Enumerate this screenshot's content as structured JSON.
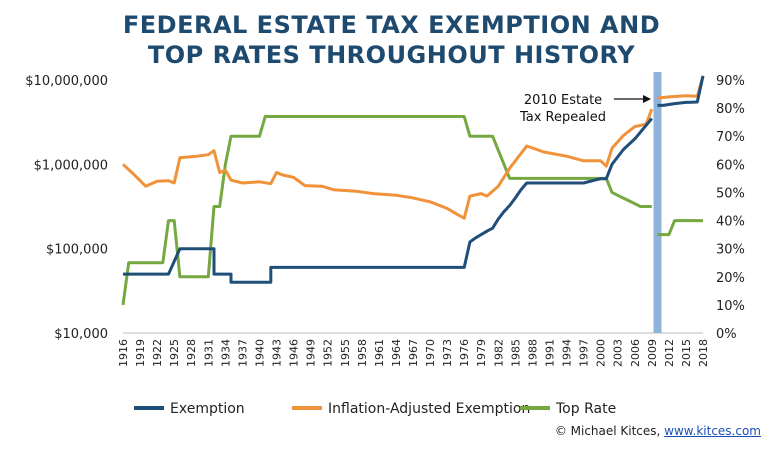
{
  "chart_data": {
    "type": "line",
    "title_line1": "FEDERAL ESTATE TAX EXEMPTION AND",
    "title_line2": "TOP RATES THROUGHOUT HISTORY",
    "y_left_scale": "log",
    "y_left_range": [
      10000,
      10000000
    ],
    "y_left_ticks": [
      "$10,000",
      "$100,000",
      "$1,000,000",
      "$10,000,000"
    ],
    "y_right_range": [
      0,
      90
    ],
    "y_right_ticks": [
      "0%",
      "10%",
      "20%",
      "30%",
      "40%",
      "50%",
      "60%",
      "70%",
      "80%",
      "90%"
    ],
    "x_range": [
      1916,
      2018
    ],
    "x_ticks": [
      "1916",
      "1919",
      "1922",
      "1925",
      "1928",
      "1931",
      "1934",
      "1937",
      "1940",
      "1943",
      "1946",
      "1949",
      "1952",
      "1955",
      "1958",
      "1961",
      "1964",
      "1967",
      "1970",
      "1973",
      "1976",
      "1979",
      "1982",
      "1985",
      "1988",
      "1991",
      "1994",
      "1997",
      "2000",
      "2003",
      "2006",
      "2009",
      "2012",
      "2015",
      "2018"
    ],
    "highlight": {
      "year": 2010,
      "color": "#8fb4d9"
    },
    "annotation": {
      "line1": "2010 Estate",
      "line2": "Tax Repealed"
    },
    "series": [
      {
        "name": "Exemption",
        "axis": "left",
        "color": "#1f4e79",
        "points": [
          [
            1916,
            50000
          ],
          [
            1924,
            50000
          ],
          [
            1926,
            100000
          ],
          [
            1932,
            100000
          ],
          [
            1932,
            50000
          ],
          [
            1935,
            50000
          ],
          [
            1935,
            40000
          ],
          [
            1942,
            40000
          ],
          [
            1942,
            60000
          ],
          [
            1976,
            60000
          ],
          [
            1977,
            120000
          ],
          [
            1978,
            134000
          ],
          [
            1979,
            147000
          ],
          [
            1980,
            161000
          ],
          [
            1981,
            175000
          ],
          [
            1982,
            225000
          ],
          [
            1983,
            275000
          ],
          [
            1984,
            325000
          ],
          [
            1985,
            400000
          ],
          [
            1986,
            500000
          ],
          [
            1987,
            600000
          ],
          [
            1997,
            600000
          ],
          [
            1998,
            625000
          ],
          [
            1999,
            650000
          ],
          [
            2000,
            675000
          ],
          [
            2001,
            675000
          ],
          [
            2002,
            1000000
          ],
          [
            2004,
            1500000
          ],
          [
            2006,
            2000000
          ],
          [
            2009,
            3500000
          ]
        ],
        "points_after_gap": [
          [
            2010,
            5000000
          ],
          [
            2011,
            5000000
          ],
          [
            2012,
            5120000
          ],
          [
            2013,
            5250000
          ],
          [
            2014,
            5340000
          ],
          [
            2015,
            5430000
          ],
          [
            2016,
            5450000
          ],
          [
            2017,
            5490000
          ],
          [
            2018,
            11180000
          ]
        ]
      },
      {
        "name": "Inflation-Adjusted Exemption",
        "axis": "left",
        "color": "#f0923a",
        "points": [
          [
            1916,
            1000000
          ],
          [
            1918,
            750000
          ],
          [
            1920,
            550000
          ],
          [
            1922,
            630000
          ],
          [
            1924,
            640000
          ],
          [
            1925,
            600000
          ],
          [
            1926,
            1200000
          ],
          [
            1929,
            1250000
          ],
          [
            1931,
            1300000
          ],
          [
            1932,
            1450000
          ],
          [
            1933,
            800000
          ],
          [
            1934,
            850000
          ],
          [
            1935,
            650000
          ],
          [
            1937,
            600000
          ],
          [
            1940,
            620000
          ],
          [
            1942,
            590000
          ],
          [
            1943,
            800000
          ],
          [
            1944,
            750000
          ],
          [
            1946,
            700000
          ],
          [
            1948,
            560000
          ],
          [
            1951,
            550000
          ],
          [
            1953,
            500000
          ],
          [
            1957,
            480000
          ],
          [
            1960,
            450000
          ],
          [
            1964,
            430000
          ],
          [
            1967,
            400000
          ],
          [
            1970,
            360000
          ],
          [
            1973,
            300000
          ],
          [
            1975,
            250000
          ],
          [
            1976,
            230000
          ],
          [
            1977,
            420000
          ],
          [
            1979,
            450000
          ],
          [
            1980,
            420000
          ],
          [
            1982,
            550000
          ],
          [
            1984,
            900000
          ],
          [
            1987,
            1650000
          ],
          [
            1990,
            1400000
          ],
          [
            1994,
            1250000
          ],
          [
            1997,
            1100000
          ],
          [
            2000,
            1100000
          ],
          [
            2001,
            950000
          ],
          [
            2002,
            1550000
          ],
          [
            2004,
            2200000
          ],
          [
            2006,
            2800000
          ],
          [
            2008,
            3000000
          ],
          [
            2009,
            4500000
          ]
        ],
        "points_after_gap": [
          [
            2010,
            6100000
          ],
          [
            2012,
            6300000
          ],
          [
            2015,
            6500000
          ],
          [
            2017,
            6400000
          ],
          [
            2018,
            11180000
          ]
        ]
      },
      {
        "name": "Top Rate",
        "axis": "right",
        "color": "#76a842",
        "points": [
          [
            1916,
            10
          ],
          [
            1917,
            25
          ],
          [
            1923,
            25
          ],
          [
            1924,
            40
          ],
          [
            1925,
            40
          ],
          [
            1926,
            20
          ],
          [
            1931,
            20
          ],
          [
            1932,
            45
          ],
          [
            1933,
            45
          ],
          [
            1934,
            60
          ],
          [
            1935,
            70
          ],
          [
            1940,
            70
          ],
          [
            1941,
            77
          ],
          [
            1976,
            77
          ],
          [
            1977,
            70
          ],
          [
            1981,
            70
          ],
          [
            1982,
            65
          ],
          [
            1983,
            60
          ],
          [
            1984,
            55
          ],
          [
            2001,
            55
          ],
          [
            2002,
            50
          ],
          [
            2003,
            49
          ],
          [
            2004,
            48
          ],
          [
            2005,
            47
          ],
          [
            2006,
            46
          ],
          [
            2007,
            45
          ],
          [
            2009,
            45
          ]
        ],
        "points_after_gap": [
          [
            2010,
            35
          ],
          [
            2012,
            35
          ],
          [
            2013,
            40
          ],
          [
            2018,
            40
          ]
        ]
      }
    ],
    "legend": [
      "Exemption",
      "Inflation-Adjusted Exemption",
      "Top Rate"
    ],
    "legend_position": "bottom"
  },
  "credit": {
    "prefix": "© Michael Kitces, ",
    "link": "www.kitces.com"
  }
}
